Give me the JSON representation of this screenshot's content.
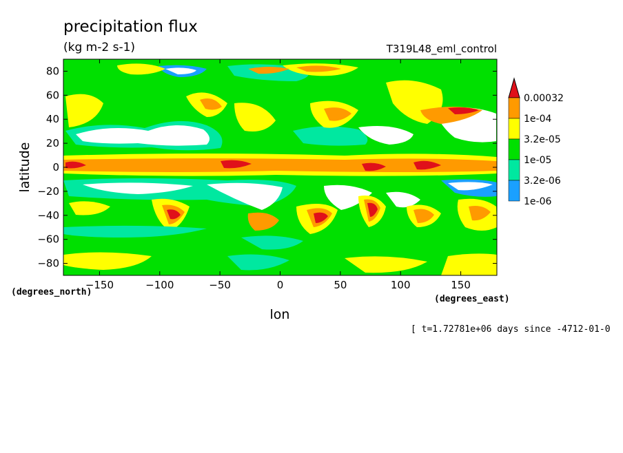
{
  "chart_data": {
    "type": "heatmap",
    "title": "precipitation flux",
    "subtitle": "(kg m-2 s-1)",
    "run_label": "T319L48_eml_control",
    "xlabel": "lon",
    "ylabel": "latitude",
    "xunits": "(degrees_east)",
    "yunits": "(degrees_north)",
    "xlim": [
      -180,
      180
    ],
    "ylim": [
      -90,
      90
    ],
    "xticks": [
      -150,
      -100,
      -50,
      0,
      50,
      100,
      150
    ],
    "yticks": [
      80,
      60,
      40,
      20,
      0,
      -20,
      -40,
      -60,
      -80
    ],
    "time_label": "[ t=1.72781e+06 days since -4712-01-0",
    "colorbar": {
      "levels": [
        "0.00032",
        "1e-04",
        "3.2e-05",
        "1e-05",
        "3.2e-06",
        "1e-06"
      ],
      "colors": [
        "#e0101a",
        "#ff9a00",
        "#ffff00",
        "#00e000",
        "#00e8a0",
        "#1aa0ff"
      ]
    },
    "grid": false,
    "legend_position": "right"
  }
}
